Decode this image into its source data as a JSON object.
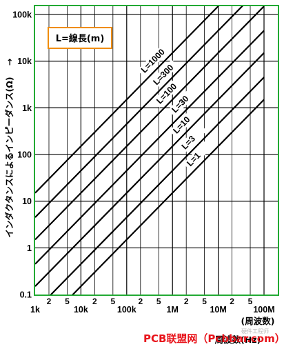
{
  "chart_data": {
    "type": "line",
    "xscale": "log",
    "yscale": "log",
    "xlim": [
      1000,
      200000000
    ],
    "ylim": [
      0.1,
      150000
    ],
    "x_ticks": [
      {
        "v": 1000,
        "label": "1k"
      },
      {
        "v": 2000,
        "label": "2"
      },
      {
        "v": 5000,
        "label": "5"
      },
      {
        "v": 10000,
        "label": "10k"
      },
      {
        "v": 20000,
        "label": "2"
      },
      {
        "v": 50000,
        "label": "5"
      },
      {
        "v": 100000,
        "label": "100k"
      },
      {
        "v": 200000,
        "label": "2"
      },
      {
        "v": 500000,
        "label": "5"
      },
      {
        "v": 1000000,
        "label": "1M"
      },
      {
        "v": 2000000,
        "label": "2"
      },
      {
        "v": 5000000,
        "label": "5"
      },
      {
        "v": 10000000,
        "label": "10M"
      },
      {
        "v": 20000000,
        "label": "2"
      },
      {
        "v": 50000000,
        "label": "5"
      },
      {
        "v": 100000000,
        "label": "100M"
      }
    ],
    "y_ticks": [
      {
        "v": 0.1,
        "label": "0.1"
      },
      {
        "v": 1,
        "label": "1"
      },
      {
        "v": 10,
        "label": "10"
      },
      {
        "v": 100,
        "label": "100"
      },
      {
        "v": 1000,
        "label": "1k"
      },
      {
        "v": 10000,
        "label": "10k"
      },
      {
        "v": 100000,
        "label": "100k"
      }
    ],
    "xlabel": "周波数(Hz)",
    "xlabel_unit": "(周波数)",
    "ylabel": "インダクタンスによるインピーダンス(Ω)",
    "ylabel_arrow": "→",
    "legend_box": "L=線長(m)",
    "series": [
      {
        "name": "L=1000",
        "label": "L=1000",
        "x": [
          1000,
          100000000
        ],
        "y": [
          15,
          1500000
        ]
      },
      {
        "name": "L=300",
        "label": "L=300",
        "x": [
          1000,
          100000000
        ],
        "y": [
          4.5,
          450000
        ]
      },
      {
        "name": "L=100",
        "label": "L=100",
        "x": [
          1000,
          100000000
        ],
        "y": [
          1.5,
          150000
        ]
      },
      {
        "name": "L=30",
        "label": "L=30",
        "x": [
          1000,
          100000000
        ],
        "y": [
          0.45,
          45000
        ]
      },
      {
        "name": "L=10",
        "label": "L=10",
        "x": [
          1000,
          100000000
        ],
        "y": [
          0.15,
          15000
        ]
      },
      {
        "name": "L=3",
        "label": "L=3",
        "x": [
          1000,
          100000000
        ],
        "y": [
          0.045,
          4500
        ]
      },
      {
        "name": "L=1",
        "label": "L=1",
        "x": [
          1000,
          100000000
        ],
        "y": [
          0.015,
          1500
        ]
      }
    ],
    "grid": true,
    "frame_color": "#22aa33",
    "legend_color": "#f08c00"
  },
  "watermark": {
    "main": "PCB联盟网（Pcbbar.com）",
    "small": "硬件工程师"
  }
}
